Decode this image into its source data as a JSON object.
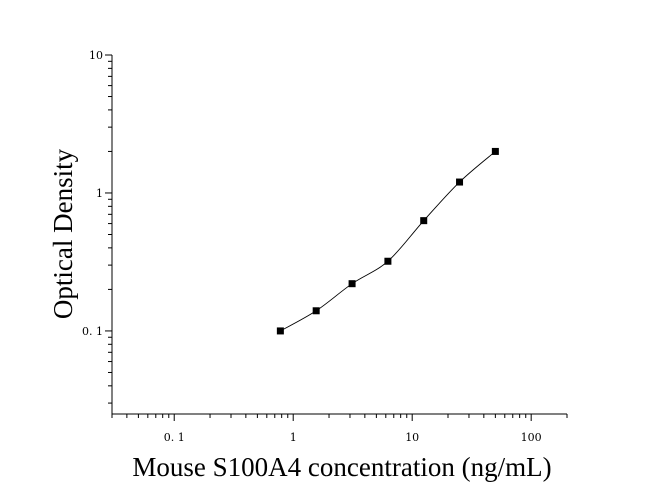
{
  "chart_data": {
    "type": "scatter",
    "xlabel": "Mouse S100A4 concentration (ng/mL)",
    "ylabel": "Optical Density",
    "xscale": "log",
    "yscale": "log",
    "xlim": [
      0.03,
      200
    ],
    "ylim": [
      0.025,
      10
    ],
    "x_ticks": [
      {
        "value": 0.1,
        "label": "0. 1"
      },
      {
        "value": 1,
        "label": "1"
      },
      {
        "value": 10,
        "label": "10"
      },
      {
        "value": 100,
        "label": "100"
      }
    ],
    "y_ticks": [
      {
        "value": 0.1,
        "label": "0. 1"
      },
      {
        "value": 1,
        "label": "1"
      },
      {
        "value": 10,
        "label": "10"
      }
    ],
    "grid": false,
    "series": [
      {
        "marker": "square",
        "color": "#000000",
        "x": [
          0.78,
          1.56,
          3.125,
          6.25,
          12.5,
          25,
          50
        ],
        "y": [
          0.1,
          0.14,
          0.22,
          0.32,
          0.63,
          1.2,
          2.0
        ]
      }
    ],
    "fit_curve": {
      "color": "#000000",
      "x_range": [
        0.78,
        50
      ]
    }
  }
}
